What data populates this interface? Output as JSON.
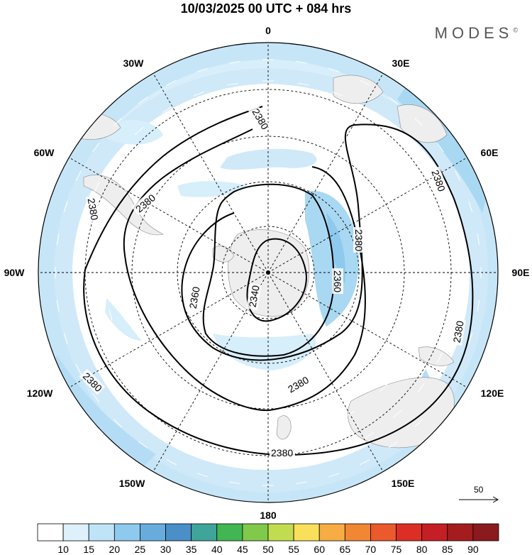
{
  "header": {
    "title": "10/03/2025  00 UTC  + 084 hrs",
    "brand": "MODES",
    "brand_mark": "©"
  },
  "map": {
    "projection": "south polar stereographic",
    "longitude_labels": [
      "0",
      "30E",
      "60E",
      "90E",
      "120E",
      "150E",
      "180",
      "150W",
      "120W",
      "90W",
      "60W",
      "30W"
    ],
    "contour_labels": [
      "2380",
      "2380",
      "2380",
      "2380",
      "2380",
      "2380",
      "2380",
      "2380",
      "2380",
      "2360",
      "2360",
      "2340"
    ],
    "wind_reference": {
      "value": "50"
    },
    "colors": {
      "contour": "#000000",
      "land": "#eeeeee",
      "background": "#ffffff"
    }
  },
  "colorbar": {
    "labels": [
      "10",
      "15",
      "20",
      "25",
      "30",
      "35",
      "40",
      "45",
      "50",
      "55",
      "60",
      "65",
      "70",
      "75",
      "80",
      "85",
      "90"
    ],
    "colors": [
      "#ffffff",
      "#ddf0fb",
      "#bfe4f7",
      "#8ec9ee",
      "#68acde",
      "#4a8fc8",
      "#3fa59a",
      "#42b653",
      "#80c94a",
      "#c2dc4f",
      "#fadf5a",
      "#f7ad44",
      "#f18635",
      "#ea5a2c",
      "#dd2e26",
      "#c41f24",
      "#a51c1f",
      "#8a1a1d"
    ]
  }
}
